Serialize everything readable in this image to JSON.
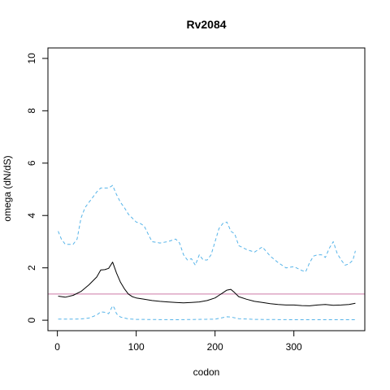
{
  "chart_data": {
    "type": "line",
    "title": "Rv2084",
    "xlabel": "codon",
    "ylabel": "omega (dN/dS)",
    "xlim": [
      -12,
      390
    ],
    "ylim": [
      -0.4,
      10.4
    ],
    "x_ticks": [
      0,
      100,
      200,
      300
    ],
    "y_ticks": [
      0,
      2,
      4,
      6,
      8,
      10
    ],
    "grid": false,
    "legend": "none",
    "reference_line": {
      "y": 1,
      "color": "#cc79a7"
    },
    "colors": {
      "mean": "#000000",
      "upper": "#56b4e9",
      "lower": "#56b4e9"
    },
    "series": [
      {
        "role": "mean",
        "style": "solid",
        "x": [
          1,
          10,
          20,
          30,
          40,
          50,
          55,
          60,
          65,
          70,
          75,
          80,
          85,
          90,
          95,
          100,
          110,
          120,
          130,
          140,
          150,
          160,
          170,
          180,
          190,
          200,
          205,
          210,
          215,
          220,
          225,
          230,
          240,
          250,
          260,
          270,
          280,
          290,
          300,
          310,
          320,
          330,
          340,
          350,
          360,
          370,
          378
        ],
        "y": [
          0.92,
          0.88,
          0.95,
          1.1,
          1.35,
          1.65,
          1.92,
          1.93,
          1.98,
          2.22,
          1.8,
          1.45,
          1.2,
          1.0,
          0.9,
          0.85,
          0.8,
          0.75,
          0.72,
          0.7,
          0.68,
          0.66,
          0.68,
          0.7,
          0.75,
          0.85,
          0.95,
          1.05,
          1.15,
          1.18,
          1.05,
          0.9,
          0.8,
          0.72,
          0.68,
          0.63,
          0.6,
          0.58,
          0.58,
          0.56,
          0.55,
          0.58,
          0.6,
          0.57,
          0.58,
          0.6,
          0.65
        ]
      },
      {
        "role": "upper",
        "style": "dashed",
        "x": [
          1,
          5,
          10,
          20,
          25,
          30,
          35,
          40,
          45,
          50,
          55,
          60,
          65,
          70,
          75,
          80,
          85,
          90,
          95,
          100,
          105,
          110,
          115,
          120,
          130,
          140,
          150,
          155,
          160,
          165,
          170,
          175,
          180,
          185,
          190,
          195,
          200,
          205,
          210,
          215,
          218,
          220,
          225,
          230,
          240,
          250,
          260,
          270,
          280,
          290,
          300,
          310,
          315,
          320,
          325,
          330,
          335,
          340,
          345,
          350,
          355,
          360,
          365,
          370,
          375,
          378
        ],
        "y": [
          3.4,
          3.1,
          2.9,
          2.9,
          3.1,
          3.9,
          4.3,
          4.5,
          4.7,
          4.9,
          5.05,
          5.05,
          5.05,
          5.15,
          4.8,
          4.5,
          4.3,
          4.05,
          3.9,
          3.75,
          3.7,
          3.6,
          3.3,
          3.0,
          2.95,
          3.0,
          3.1,
          2.95,
          2.5,
          2.3,
          2.35,
          2.1,
          2.5,
          2.3,
          2.3,
          2.5,
          3.0,
          3.5,
          3.7,
          3.75,
          3.55,
          3.4,
          3.3,
          2.85,
          2.7,
          2.6,
          2.8,
          2.45,
          2.2,
          2.0,
          2.05,
          1.9,
          1.85,
          2.2,
          2.45,
          2.5,
          2.5,
          2.4,
          2.75,
          3.0,
          2.55,
          2.3,
          2.1,
          2.15,
          2.3,
          2.65
        ]
      },
      {
        "role": "lower",
        "style": "dashed",
        "x": [
          1,
          10,
          20,
          30,
          40,
          50,
          55,
          60,
          65,
          70,
          72,
          75,
          80,
          90,
          100,
          150,
          200,
          210,
          215,
          220,
          230,
          250,
          300,
          378
        ],
        "y": [
          0.04,
          0.04,
          0.04,
          0.05,
          0.08,
          0.2,
          0.32,
          0.3,
          0.25,
          0.55,
          0.48,
          0.25,
          0.12,
          0.05,
          0.03,
          0.02,
          0.04,
          0.1,
          0.13,
          0.12,
          0.06,
          0.03,
          0.02,
          0.02
        ]
      }
    ]
  }
}
